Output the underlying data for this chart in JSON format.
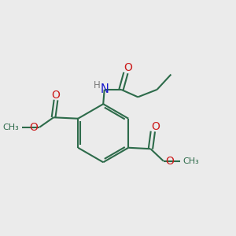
{
  "bg_color": "#ebebeb",
  "bond_color": "#2d6b4a",
  "bond_width": 1.5,
  "atom_colors": {
    "C": "#2d6b4a",
    "H": "#7a7a7a",
    "N": "#1a1acc",
    "O": "#cc1a1a"
  },
  "font_size": 8.5
}
